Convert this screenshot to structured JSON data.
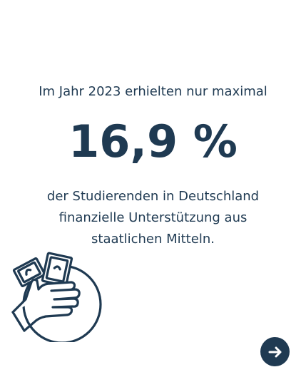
{
  "intro_text": "Im Jahr 2023 erhielten nur maximal",
  "statistic": "16,9 %",
  "description_lines": [
    "der Studierenden in Deutschland",
    "finanzielle Unterstützung aus",
    "staatlichen Mitteln."
  ],
  "colors": {
    "primary": "#1f3a52",
    "background": "#ffffff"
  },
  "icons": {
    "illustration": "hand-with-money-and-coin-icon",
    "next": "arrow-right-icon"
  }
}
